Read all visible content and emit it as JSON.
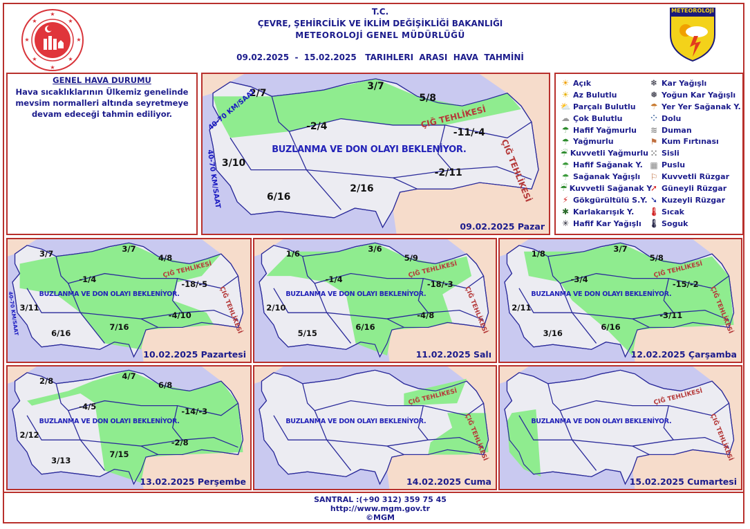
{
  "header": {
    "line1": "T.C.",
    "line2": "ÇEVRE, ŞEHİRCİLİK VE İKLİM DEĞİŞİKLİĞİ BAKANLIĞI",
    "line3": "METEOROLOJİ  GENEL  MÜDÜRLÜĞÜ",
    "title": "09.02.2025  -  15.02.2025   TARIHLERI  ARASI  HAVA  TAHMİNİ",
    "right_logo_text": "METEOROLOJİ"
  },
  "colors": {
    "frame": "#b8302c",
    "text": "#1c1c8c",
    "sea": "#c9c9f0",
    "land": "#ececf2",
    "neighbor": "#f6dccb",
    "snow_area": "#8fec8f",
    "border": "#2a2a9a"
  },
  "general": {
    "title": "GENEL HAVA DURUMU",
    "text": "Hava sıcaklıklarının Ülkemiz genelinde mevsim normalleri altında seyretmeye devam edeceği tahmin ediliyor."
  },
  "legend": [
    {
      "label": "Açık",
      "icon": "sun-icon"
    },
    {
      "label": "Kar Yağışlı",
      "icon": "snow-icon"
    },
    {
      "label": "Az Bulutlu",
      "icon": "mostly-sunny-icon"
    },
    {
      "label": "Yoğun Kar Yağışlı",
      "icon": "heavy-snow-icon"
    },
    {
      "label": "Parçalı Bulutlu",
      "icon": "partly-cloudy-icon"
    },
    {
      "label": "Yer Yer Sağanak Y.",
      "icon": "scattered-showers-icon"
    },
    {
      "label": "Çok Bulutlu",
      "icon": "cloudy-icon"
    },
    {
      "label": "Dolu",
      "icon": "hail-icon"
    },
    {
      "label": "Hafif Yağmurlu",
      "icon": "light-rain-icon"
    },
    {
      "label": "Duman",
      "icon": "smoke-icon"
    },
    {
      "label": "Yağmurlu",
      "icon": "rain-icon"
    },
    {
      "label": "Kum Fırtınası",
      "icon": "sandstorm-icon"
    },
    {
      "label": "Kuvvetli Yağmurlu",
      "icon": "heavy-rain-icon"
    },
    {
      "label": "Sisli",
      "icon": "fog-icon"
    },
    {
      "label": "Hafif Sağanak Y.",
      "icon": "light-shower-icon"
    },
    {
      "label": "Puslu",
      "icon": "haze-icon"
    },
    {
      "label": "Sağanak Yağışlı",
      "icon": "shower-icon"
    },
    {
      "label": "Kuvvetli Rüzgar",
      "icon": "strong-wind-icon"
    },
    {
      "label": "Kuvvetli Sağanak Y",
      "icon": "heavy-shower-icon"
    },
    {
      "label": "Güneyli Rüzgar",
      "icon": "south-wind-arrow-icon"
    },
    {
      "label": "Gökgürültülü S.Y.",
      "icon": "thunderstorm-icon"
    },
    {
      "label": "Kuzeyli Rüzgar",
      "icon": "north-wind-arrow-icon"
    },
    {
      "label": "Karlakarışık Y.",
      "icon": "sleet-icon"
    },
    {
      "label": "Sıcak",
      "icon": "hot-thermometer-icon"
    },
    {
      "label": "Hafif Kar Yağışlı",
      "icon": "light-snow-icon"
    },
    {
      "label": "Soguk",
      "icon": "cold-thermometer-icon"
    }
  ],
  "maps": [
    {
      "date": "09.02.2025 Pazar",
      "temps": [
        "2/7",
        "3/7",
        "5/8",
        "-2/4",
        "-11/-4",
        "3/10",
        "-2/11",
        "2/16",
        "6/16"
      ],
      "banner": "BUZLANMA VE DON OLAYI BEKLENİYOR.",
      "avalanche": [
        "ÇIĞ TEHLİKESİ",
        "ÇIĞ TEHLİKESİ"
      ],
      "wind": [
        "40-70 KM/SAAT",
        "40-70 KM/SAAT"
      ]
    },
    {
      "date": "10.02.2025 Pazartesi",
      "temps": [
        "3/7",
        "3/7",
        "4/8",
        "-1/4",
        "-18/-5",
        "3/11",
        "-4/10",
        "7/16",
        "6/16"
      ],
      "banner": "BUZLANMA VE DON OLAYI BEKLENİYOR.",
      "avalanche": [
        "ÇIĞ TEHLİKESİ",
        "ÇIĞ TEHLİKESİ"
      ],
      "wind": [
        "40-70 KM/SAAT"
      ]
    },
    {
      "date": "11.02.2025 Salı",
      "temps": [
        "1/6",
        "3/6",
        "5/9",
        "-1/4",
        "-18/-3",
        "2/10",
        "-4/8",
        "6/16",
        "5/15"
      ],
      "banner": "BUZLANMA VE DON OLAYI BEKLENİYOR.",
      "avalanche": [
        "ÇIĞ TEHLİKESİ",
        "ÇIĞ TEHLİKESİ"
      ]
    },
    {
      "date": "12.02.2025 Çarşamba",
      "temps": [
        "1/8",
        "3/7",
        "5/8",
        "-3/4",
        "-15/-2",
        "2/11",
        "-3/11",
        "6/16",
        "3/16"
      ],
      "banner": "BUZLANMA VE DON OLAYI BEKLENİYOR.",
      "avalanche": [
        "ÇIĞ TEHLİKESİ",
        "ÇIĞ TEHLİKESİ"
      ]
    },
    {
      "date": "13.02.2025 Perşembe",
      "temps": [
        "2/8",
        "4/7",
        "6/8",
        "-4/5",
        "-14/-3",
        "2/12",
        "-2/8",
        "7/15",
        "3/13"
      ],
      "banner": "BUZLANMA VE DON OLAYI BEKLENİYOR."
    },
    {
      "date": "14.02.2025 Cuma",
      "temps": [],
      "banner": "BUZLANMA VE DON OLAYI BEKLENİYOR.",
      "avalanche": [
        "ÇIĞ TEHLİKESİ",
        "ÇIĞ TEHLİKESİ"
      ]
    },
    {
      "date": "15.02.2025 Cumartesi",
      "temps": [],
      "banner": "BUZLANMA VE DON OLAYI BEKLENİYOR.",
      "avalanche": [
        "ÇIĞ TEHLİKESİ",
        "ÇIĞ TEHLİKESİ"
      ]
    }
  ],
  "footer": {
    "phone": "SANTRAL :(+90 312) 359 75 45",
    "url": "http://www.mgm.gov.tr",
    "copyright": "©MGM"
  }
}
